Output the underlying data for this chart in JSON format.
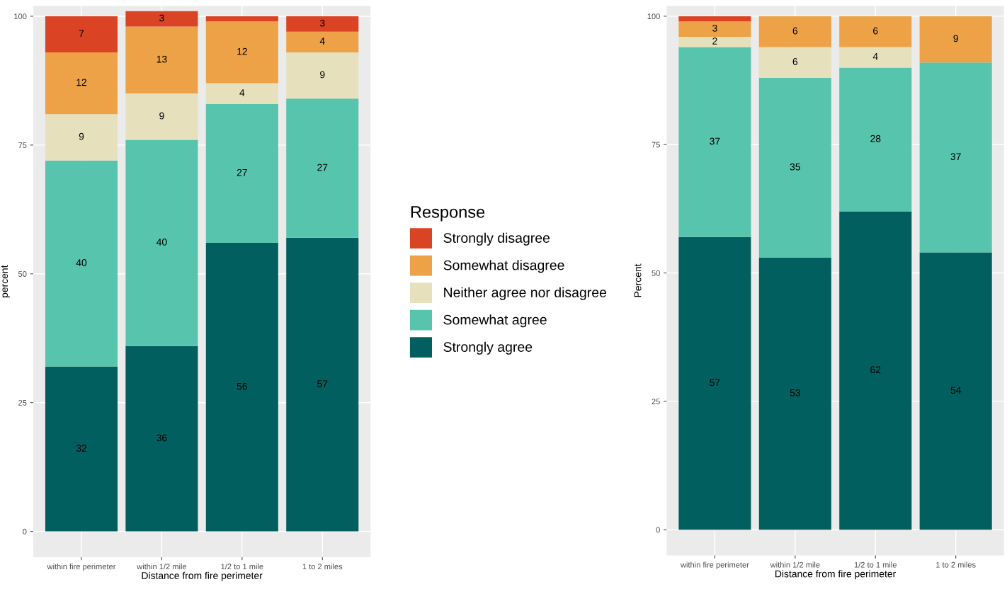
{
  "chart_data": [
    {
      "type": "bar",
      "stacked": true,
      "categories": [
        "within fire perimeter",
        "within 1/2 mile",
        "1/2 to 1 mile",
        "1 to 2 miles"
      ],
      "xlabel": "Distance from fire perimeter",
      "ylabel": "percent",
      "legend_title": "Response",
      "legend": "right",
      "grid": true,
      "ylim": [
        -5,
        102
      ],
      "yticks": [
        0,
        25,
        50,
        75,
        100
      ],
      "series": [
        {
          "name": "Strongly agree",
          "color": "#01605f",
          "values": [
            32,
            36,
            56,
            57
          ],
          "value_labels": [
            "32",
            "36",
            "56",
            "57"
          ]
        },
        {
          "name": "Somewhat agree",
          "color": "#57c4ad",
          "values": [
            40,
            40,
            27,
            27
          ],
          "value_labels": [
            "40",
            "40",
            "27",
            "27"
          ]
        },
        {
          "name": "Neither agree nor disagree",
          "color": "#e6e1bc",
          "values": [
            9,
            9,
            4,
            9
          ],
          "value_labels": [
            "9",
            "9",
            "4",
            "9"
          ]
        },
        {
          "name": "Somewhat disagree",
          "color": "#eda247",
          "values": [
            12,
            13,
            12,
            4
          ],
          "value_labels": [
            "12",
            "13",
            "12",
            "4"
          ]
        },
        {
          "name": "Strongly disagree",
          "color": "#db4325",
          "values": [
            7,
            3,
            1,
            3
          ],
          "value_labels": [
            "7",
            "3",
            null,
            "3"
          ]
        }
      ]
    },
    {
      "type": "bar",
      "stacked": true,
      "categories": [
        "within fire perimeter",
        "within 1/2 mile",
        "1/2 to 1 mile",
        "1 to 2 miles"
      ],
      "xlabel": "Distance from fire perimeter",
      "ylabel": "Percent",
      "grid": true,
      "ylim": [
        -5,
        102
      ],
      "yticks": [
        0,
        25,
        50,
        75,
        100
      ],
      "series": [
        {
          "color": "#01605f",
          "values": [
            57,
            53,
            62,
            54
          ],
          "value_labels": [
            "57",
            "53",
            "62",
            "54"
          ]
        },
        {
          "color": "#57c4ad",
          "values": [
            37,
            35,
            28,
            37
          ],
          "value_labels": [
            "37",
            "35",
            "28",
            "37"
          ]
        },
        {
          "color": "#e6e1bc",
          "values": [
            2,
            6,
            4,
            0
          ],
          "value_labels": [
            "2",
            "6",
            "4",
            null
          ]
        },
        {
          "color": "#eda247",
          "values": [
            3,
            6,
            6,
            9
          ],
          "value_labels": [
            "3",
            "6",
            "6",
            "9"
          ]
        },
        {
          "color": "#db4325",
          "values": [
            1,
            0,
            0,
            0
          ],
          "value_labels": [
            null,
            null,
            null,
            null
          ]
        }
      ]
    }
  ]
}
